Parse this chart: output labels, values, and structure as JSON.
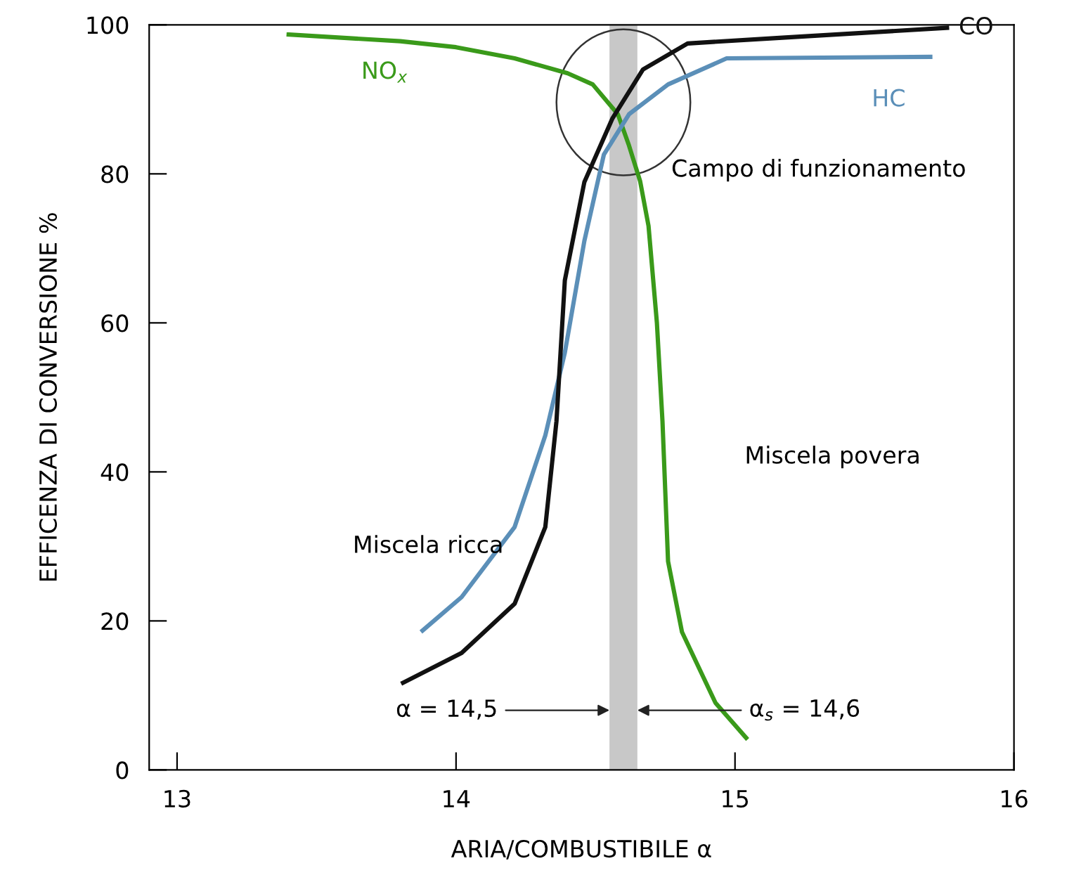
{
  "chart_data": {
    "type": "line",
    "xlabel": "ARIA/COMBUSTIBILE α",
    "ylabel": "EFFICENZA DI CONVERSIONE %",
    "xlim": [
      12.9,
      16.0
    ],
    "xticks": [
      13,
      14,
      15,
      16
    ],
    "ylim": [
      0,
      100
    ],
    "yticks": [
      0,
      20,
      40,
      60,
      80,
      100
    ],
    "grid": false,
    "legend": false,
    "marker": "none",
    "line_style": "solid",
    "series": [
      {
        "name": "NO$_{x}$",
        "color": "#3a9a1a",
        "x": [
          13.4,
          13.8,
          14.0,
          14.21,
          14.4,
          14.49,
          14.58,
          14.62,
          14.66,
          14.69,
          14.72,
          14.74,
          14.76,
          14.81,
          14.93,
          15.04
        ],
        "values": [
          98.7,
          97.8,
          97,
          95.5,
          93.5,
          92,
          88,
          83.8,
          79,
          73,
          60,
          46.8,
          28,
          18.5,
          9,
          4.3
        ]
      },
      {
        "name": "HC",
        "color": "#5b8fb8",
        "x": [
          13.88,
          14.02,
          14.21,
          14.32,
          14.39,
          14.46,
          14.53,
          14.62,
          14.76,
          14.97,
          15.7
        ],
        "values": [
          18.7,
          23.2,
          32.6,
          44.9,
          56,
          71,
          82.6,
          88,
          92,
          95.5,
          95.7
        ]
      },
      {
        "name": "CO",
        "color": "#111111",
        "x": [
          13.81,
          14.02,
          14.21,
          14.32,
          14.36,
          14.39,
          14.46,
          14.56,
          14.67,
          14.83,
          15.18,
          15.76
        ],
        "values": [
          11.7,
          15.7,
          22.3,
          32.6,
          46.8,
          65.7,
          78.9,
          87.4,
          94,
          97.5,
          98.3,
          99.6
        ]
      }
    ],
    "bands": [
      {
        "axis": "x",
        "from": 14.55,
        "to": 14.65,
        "color": "#c8c8c8"
      }
    ],
    "annotations": [
      "Campo di funzionamento",
      "Miscela ricca",
      "Miscela povera",
      {
        "text": "α = 14,5",
        "x": 14.55,
        "y": 8
      },
      {
        "text": "α$_{s}$ = 14,6",
        "x": 14.65,
        "y": 8
      }
    ]
  }
}
